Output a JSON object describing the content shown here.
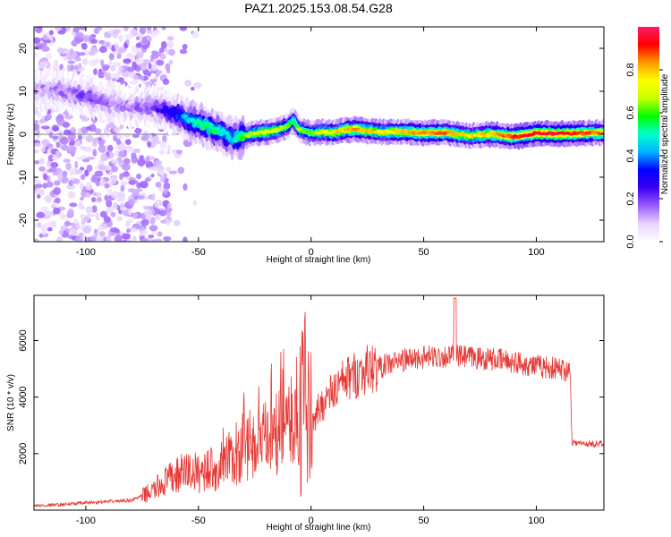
{
  "title": "PAZ1.2025.153.08.54.G28",
  "colors": {
    "snr_line": "#e53935",
    "axes": "#000000",
    "zero_line": "#808080",
    "colormap": [
      "#ffffff",
      "#e8d4ff",
      "#9a5cff",
      "#3c00f0",
      "#0000ff",
      "#00b4ff",
      "#00ffcf",
      "#00ff00",
      "#c8ff00",
      "#ffff00",
      "#ff9900",
      "#ff0000",
      "#ff1a66"
    ]
  },
  "chart_data": [
    {
      "type": "heatmap",
      "description_id": "spectrogram",
      "xlabel": "Height of straight line (km)",
      "ylabel": "Frequency (Hz)",
      "xlim": [
        -123,
        130
      ],
      "ylim": [
        -25,
        25
      ],
      "xticks": [
        -100,
        -50,
        0,
        50,
        100
      ],
      "yticks": [
        -20,
        -10,
        0,
        10,
        20
      ],
      "colorbar": {
        "label": "Normalized spectral amplitude",
        "range": [
          0,
          1
        ],
        "ticks": [
          "0.0",
          "0.2",
          "0.4",
          "0.6",
          "0.8"
        ],
        "tick_values": [
          0,
          0.2,
          0.4,
          0.6,
          0.8
        ]
      },
      "ridge": {
        "x": [
          -120,
          -110,
          -100,
          -90,
          -80,
          -70,
          -62,
          -55,
          -50,
          -45,
          -40,
          -35,
          -30,
          -25,
          -20,
          -15,
          -10,
          -8,
          -5,
          0,
          5,
          10,
          15,
          20,
          25,
          30,
          40,
          50,
          60,
          70,
          80,
          90,
          100,
          110,
          120,
          130
        ],
        "y": [
          10.5,
          10,
          9,
          7.5,
          6,
          6.5,
          5,
          3.5,
          2.5,
          1.5,
          0.5,
          -1,
          -0.5,
          0.2,
          0.5,
          1,
          2,
          3.5,
          1,
          0.3,
          0.5,
          0.4,
          1,
          1.2,
          0.8,
          0.5,
          0.6,
          0.3,
          0.4,
          -0.4,
          0,
          -0.6,
          0.2,
          0.1,
          0.2,
          0.4
        ],
        "amplitude": [
          0.12,
          0.15,
          0.2,
          0.15,
          0.14,
          0.18,
          0.3,
          0.45,
          0.5,
          0.55,
          0.5,
          0.45,
          0.6,
          0.7,
          0.75,
          0.7,
          0.6,
          0.5,
          0.65,
          0.6,
          0.75,
          0.75,
          0.8,
          0.85,
          0.8,
          0.75,
          0.8,
          0.85,
          0.85,
          0.75,
          0.8,
          0.9,
          0.95,
          0.95,
          0.9,
          0.85
        ]
      }
    },
    {
      "type": "line",
      "description_id": "snr",
      "xlabel": "Height of straight line (km)",
      "ylabel": "SNR (10 * v/v)",
      "xlim": [
        -123,
        130
      ],
      "ylim": [
        0,
        7600
      ],
      "xticks": [
        -100,
        -50,
        0,
        50,
        100
      ],
      "yticks": [
        2000,
        4000,
        6000
      ],
      "series": [
        {
          "x": [
            -123,
            -110,
            -100,
            -90,
            -80,
            -75,
            -70,
            -65,
            -60,
            -55,
            -50,
            -45,
            -40,
            -35,
            -30,
            -25,
            -20,
            -15,
            -10,
            -5,
            -2,
            0,
            2,
            5,
            10,
            15,
            20,
            25,
            30,
            40,
            50,
            60,
            64,
            70,
            80,
            90,
            100,
            110,
            115,
            116,
            120,
            130
          ],
          "y": [
            150,
            200,
            260,
            300,
            350,
            500,
            700,
            1000,
            1200,
            1400,
            1300,
            1500,
            1350,
            1800,
            2000,
            2300,
            2500,
            2700,
            3000,
            3300,
            2900,
            3400,
            3300,
            3800,
            4200,
            4600,
            4800,
            5000,
            5050,
            5300,
            5400,
            5450,
            5450,
            5400,
            5350,
            5250,
            5100,
            5000,
            4950,
            2400,
            2350,
            2350
          ]
        }
      ]
    }
  ]
}
